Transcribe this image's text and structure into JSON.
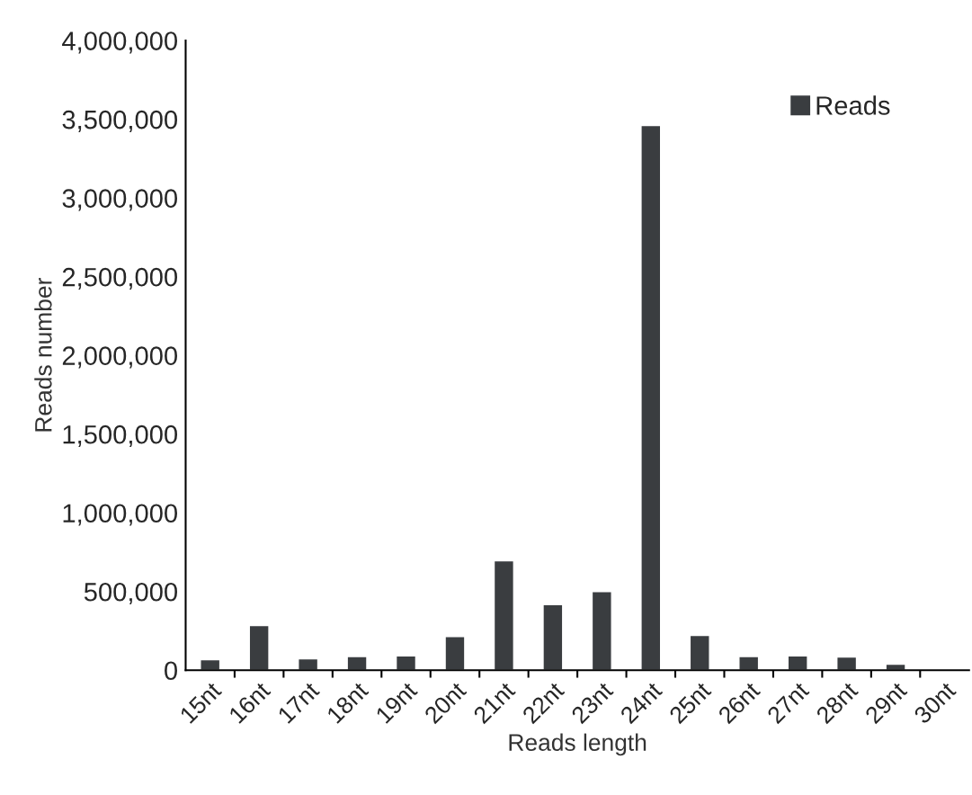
{
  "chart_data": {
    "type": "bar",
    "xlabel": "Reads length",
    "ylabel": "Reads number",
    "categories": [
      "15nt",
      "16nt",
      "17nt",
      "18nt",
      "19nt",
      "20nt",
      "21nt",
      "22nt",
      "23nt",
      "24nt",
      "25nt",
      "26nt",
      "27nt",
      "28nt",
      "29nt",
      "30nt"
    ],
    "series": [
      {
        "name": "Reads",
        "color": "#3a3d40",
        "values": [
          67000,
          284000,
          73000,
          87000,
          91000,
          213000,
          695000,
          417000,
          500000,
          3460000,
          221000,
          87000,
          91000,
          84000,
          38000,
          null
        ]
      }
    ],
    "ylim": [
      0,
      4000000
    ],
    "yticks": [
      {
        "value": 0,
        "label": "0"
      },
      {
        "value": 500000,
        "label": "500,000"
      },
      {
        "value": 1000000,
        "label": "1,000,000"
      },
      {
        "value": 1500000,
        "label": "1,500,000"
      },
      {
        "value": 2000000,
        "label": "2,000,000"
      },
      {
        "value": 2500000,
        "label": "2,500,000"
      },
      {
        "value": 3000000,
        "label": "3,000,000"
      },
      {
        "value": 3500000,
        "label": "3,500,000"
      },
      {
        "value": 4000000,
        "label": "4,000,000"
      }
    ],
    "legend": "top right",
    "grid": false
  }
}
